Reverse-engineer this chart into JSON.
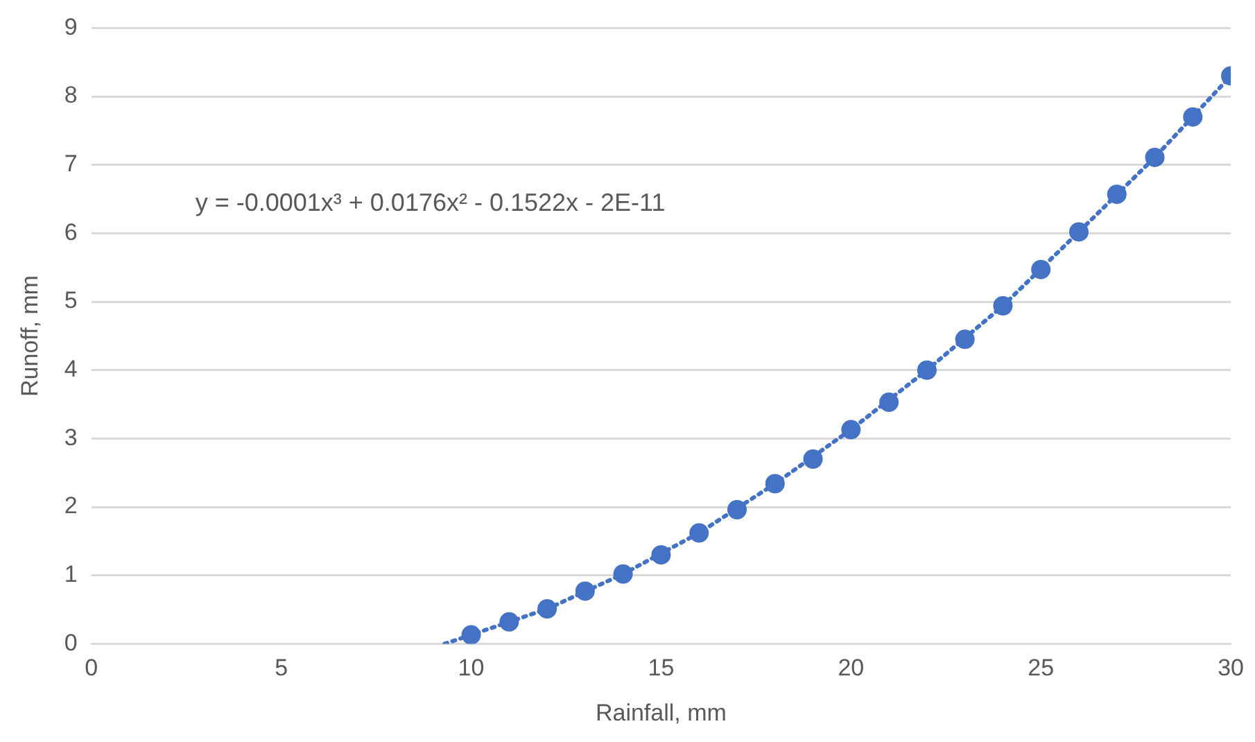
{
  "chart_data": {
    "type": "scatter",
    "xlabel": "Rainfall, mm",
    "ylabel": "Runoff, mm",
    "annotations": [
      "y = -0.0001x³ + 0.0176x² - 0.1522x - 2E-11"
    ],
    "x": [
      10,
      11,
      12,
      13,
      14,
      15,
      16,
      17,
      18,
      19,
      20,
      21,
      22,
      23,
      24,
      25,
      26,
      27,
      28,
      29,
      30
    ],
    "series": [
      {
        "color": "#4472c4",
        "marker": "circle",
        "values": [
          0.13,
          0.32,
          0.51,
          0.77,
          1.02,
          1.3,
          1.62,
          1.96,
          2.34,
          2.7,
          3.13,
          3.53,
          4.0,
          4.45,
          4.94,
          5.47,
          6.02,
          6.57,
          7.11,
          7.7,
          8.3
        ]
      },
      {
        "type": "line",
        "color": "#4472c4",
        "marker": "none",
        "line_style": "dotted",
        "x": [
          9.3,
          10,
          12,
          14,
          16,
          18,
          20,
          22,
          24,
          26,
          28,
          30
        ],
        "values": [
          0,
          0.13,
          0.51,
          1.02,
          1.62,
          2.34,
          3.13,
          4.0,
          4.94,
          6.02,
          7.11,
          8.3
        ]
      }
    ],
    "xlim": [
      0,
      30
    ],
    "xticks": [
      0,
      5,
      10,
      15,
      20,
      25,
      30
    ],
    "ylim": [
      0,
      9
    ],
    "yticks": [
      0,
      1,
      2,
      3,
      4,
      5,
      6,
      7,
      8,
      9
    ],
    "grid": "y",
    "legend": false
  }
}
